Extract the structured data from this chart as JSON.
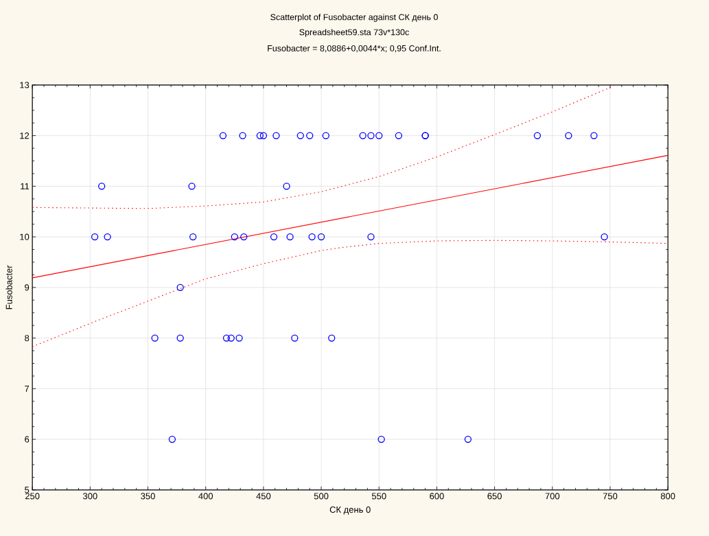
{
  "chart_data": {
    "type": "scatter",
    "title": "Scatterplot of Fusobacter against СК день 0",
    "subtitle": "Spreadsheet59.sta 73v*130c",
    "annotations": [
      "Fusobacter = 8,0886+0,0044*x; 0,95 Conf.Int."
    ],
    "xlabel": "СК день 0",
    "ylabel": "Fusobacter",
    "xlim": [
      250,
      800
    ],
    "ylim": [
      5,
      13
    ],
    "xticks": [
      250,
      300,
      350,
      400,
      450,
      500,
      550,
      600,
      650,
      700,
      750,
      800
    ],
    "yticks": [
      5,
      6,
      7,
      8,
      9,
      10,
      11,
      12,
      13
    ],
    "grid": true,
    "series": [
      {
        "marker": "circle",
        "color": "#0000ff",
        "x": [
          415,
          432,
          447,
          450,
          461,
          482,
          490,
          504,
          536,
          543,
          550,
          567,
          590,
          590,
          687,
          714,
          736,
          310,
          388,
          470,
          304,
          315,
          389,
          425,
          433,
          459,
          473,
          492,
          500,
          543,
          745,
          378,
          356,
          378,
          418,
          422,
          429,
          477,
          509,
          371,
          552,
          627
        ],
        "values": [
          12,
          12,
          12,
          12,
          12,
          12,
          12,
          12,
          12,
          12,
          12,
          12,
          12,
          12,
          12,
          12,
          12,
          11,
          11,
          11,
          10,
          10,
          10,
          10,
          10,
          10,
          10,
          10,
          10,
          10,
          10,
          9,
          8,
          8,
          8,
          8,
          8,
          8,
          8,
          6,
          6,
          6
        ]
      },
      {
        "type": "line",
        "marker": "none",
        "line_style": "solid",
        "color": "#ff0000",
        "x": [
          250,
          800
        ],
        "values": [
          9.19,
          11.61
        ]
      },
      {
        "type": "line",
        "marker": "none",
        "line_style": "dotted",
        "color": "#ff0000",
        "x": [
          250,
          300,
          350,
          400,
          450,
          500,
          528,
          550,
          600,
          650,
          700,
          750,
          753
        ],
        "values": [
          10.58,
          10.57,
          10.56,
          10.61,
          10.69,
          10.89,
          11.06,
          11.19,
          11.58,
          12.02,
          12.47,
          12.95,
          13
        ]
      },
      {
        "type": "line",
        "marker": "none",
        "line_style": "dotted",
        "color": "#ff0000",
        "x": [
          250,
          300,
          350,
          400,
          450,
          500,
          518,
          550,
          600,
          650,
          700,
          750,
          800
        ],
        "values": [
          7.83,
          8.29,
          8.73,
          9.17,
          9.47,
          9.73,
          9.79,
          9.87,
          9.92,
          9.93,
          9.92,
          9.9,
          9.87
        ]
      }
    ]
  }
}
